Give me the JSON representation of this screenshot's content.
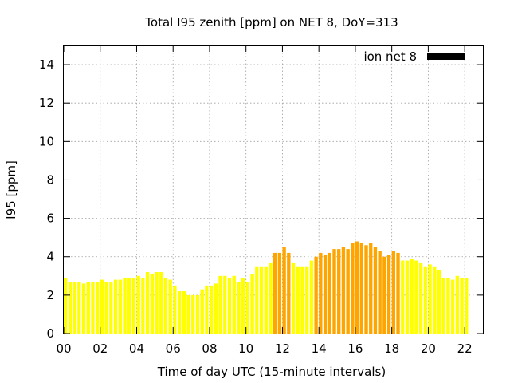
{
  "chart_data": {
    "type": "bar",
    "title": "Total I95 zenith [ppm] on NET 8, DoY=313",
    "xlabel": "Time of day UTC (15-minute intervals)",
    "ylabel": "I95 [ppm]",
    "legend": {
      "label": "ion net 8",
      "color": "#000000",
      "placement": "top-right"
    },
    "ylim": [
      0,
      15
    ],
    "yticks": [
      0,
      2,
      4,
      6,
      8,
      10,
      12,
      14
    ],
    "xlim": [
      0,
      23
    ],
    "xticks": [
      {
        "value": 0,
        "label": "00"
      },
      {
        "value": 2,
        "label": "02"
      },
      {
        "value": 4,
        "label": "04"
      },
      {
        "value": 6,
        "label": "06"
      },
      {
        "value": 8,
        "label": "08"
      },
      {
        "value": 10,
        "label": "10"
      },
      {
        "value": 12,
        "label": "12"
      },
      {
        "value": 14,
        "label": "14"
      },
      {
        "value": 16,
        "label": "16"
      },
      {
        "value": 18,
        "label": "18"
      },
      {
        "value": 20,
        "label": "20"
      },
      {
        "value": 22,
        "label": "22"
      }
    ],
    "grid": true,
    "interval_hours": 0.25,
    "colors": {
      "low": "#ffff00",
      "high": "#ffa500"
    },
    "threshold": 4,
    "values": [
      2.9,
      2.7,
      2.7,
      2.7,
      2.6,
      2.7,
      2.7,
      2.7,
      2.8,
      2.7,
      2.7,
      2.8,
      2.8,
      2.9,
      2.9,
      2.9,
      3.0,
      2.9,
      3.2,
      3.1,
      3.2,
      3.2,
      2.9,
      2.8,
      2.5,
      2.2,
      2.2,
      2.0,
      2.0,
      2.0,
      2.3,
      2.5,
      2.5,
      2.6,
      3.0,
      3.0,
      2.9,
      3.0,
      2.7,
      2.9,
      2.7,
      3.1,
      3.5,
      3.5,
      3.5,
      3.7,
      4.2,
      4.2,
      4.5,
      4.2,
      3.7,
      3.5,
      3.5,
      3.5,
      3.8,
      4.0,
      4.2,
      4.1,
      4.2,
      4.4,
      4.4,
      4.5,
      4.4,
      4.7,
      4.8,
      4.7,
      4.6,
      4.7,
      4.5,
      4.3,
      4.0,
      4.1,
      4.3,
      4.2,
      3.8,
      3.8,
      3.9,
      3.8,
      3.7,
      3.5,
      3.6,
      3.5,
      3.3,
      2.9,
      2.9,
      2.8,
      3.0,
      2.9,
      2.9
    ]
  }
}
